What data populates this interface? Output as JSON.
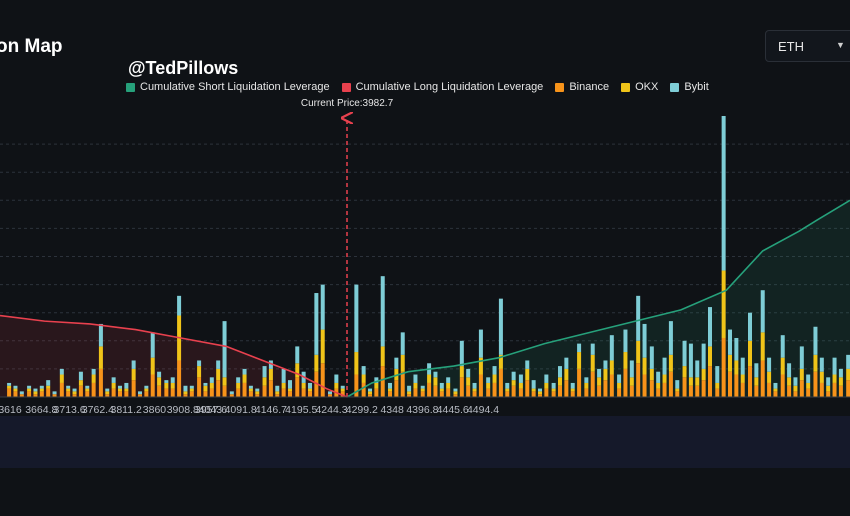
{
  "title": "on Map",
  "watermark": "@TedPillows",
  "symbol_select": {
    "value": "ETH"
  },
  "colors": {
    "short": "#26a17b",
    "long": "#e8414e",
    "binance": "#f7931a",
    "okx": "#f0c419",
    "bybit": "#7ecdd6"
  },
  "chart_data": {
    "type": "bar",
    "title": "",
    "current_price": {
      "label": "Current Price:3982.7",
      "value": 3982.7
    },
    "legend": [
      "Cumulative Short Liquidation Leverage",
      "Cumulative Long Liquidation Leverage",
      "Binance",
      "OKX",
      "Bybit"
    ],
    "x_tick_labels": [
      "3616",
      "3664.8",
      "3713.6",
      "3762.4",
      "3811.2",
      "3860",
      "3908.8",
      "3957.6",
      "4043",
      "4091.8",
      "4146.7",
      "4195.5",
      "4244.3",
      "4299.2",
      "4348",
      "4396.8",
      "4445.6",
      "4494.4"
    ],
    "xlim": [
      3601,
      4536
    ],
    "ylim": [
      0,
      100
    ],
    "grid": true,
    "bars_x": [
      3611,
      3618,
      3625,
      3633,
      3640,
      3647,
      3654,
      3661,
      3669,
      3676,
      3683,
      3690,
      3697,
      3704,
      3712,
      3719,
      3726,
      3733,
      3740,
      3748,
      3755,
      3762,
      3769,
      3776,
      3784,
      3791,
      3798,
      3805,
      3812,
      3820,
      3827,
      3834,
      3841,
      3848,
      3856,
      3863,
      3870,
      3877,
      3884,
      3892,
      3899,
      3906,
      3913,
      3920,
      3928,
      3935,
      3942,
      3949,
      3956,
      3964,
      3971,
      3978,
      3993,
      4001,
      4008,
      4015,
      4022,
      4030,
      4037,
      4044,
      4051,
      4058,
      4066,
      4073,
      4080,
      4087,
      4094,
      4102,
      4109,
      4116,
      4123,
      4130,
      4138,
      4145,
      4152,
      4159,
      4166,
      4174,
      4181,
      4188,
      4195,
      4202,
      4210,
      4217,
      4224,
      4231,
      4238,
      4246,
      4253,
      4260,
      4267,
      4274,
      4282,
      4289,
      4296,
      4303,
      4310,
      4318,
      4325,
      4332,
      4339,
      4346,
      4354,
      4361,
      4368,
      4375,
      4382,
      4390,
      4397,
      4404,
      4411,
      4418,
      4426,
      4433,
      4440,
      4447,
      4454,
      4462,
      4469,
      4476,
      4483,
      4490,
      4498,
      4505,
      4512,
      4519,
      4526,
      4534
    ],
    "binance": [
      3,
      2,
      1,
      2,
      1,
      2,
      3,
      1,
      5,
      2,
      1,
      4,
      2,
      5,
      10,
      1,
      3,
      2,
      2,
      6,
      1,
      2,
      8,
      4,
      3,
      3,
      13,
      1,
      2,
      7,
      2,
      3,
      6,
      4,
      1,
      3,
      5,
      2,
      1,
      4,
      6,
      1,
      3,
      2,
      7,
      3,
      2,
      9,
      12,
      1,
      3,
      2,
      8,
      5,
      1,
      3,
      11,
      2,
      6,
      9,
      1,
      3,
      2,
      5,
      4,
      2,
      3,
      1,
      7,
      4,
      2,
      8,
      3,
      5,
      10,
      2,
      4,
      3,
      6,
      2,
      1,
      3,
      2,
      4,
      6,
      2,
      10,
      3,
      9,
      4,
      6,
      8,
      3,
      10,
      4,
      12,
      8,
      6,
      3,
      5,
      9,
      2,
      7,
      4,
      4,
      6,
      11,
      3,
      21,
      9,
      8,
      5,
      11,
      4,
      13,
      5,
      2,
      8,
      4,
      2,
      6,
      3,
      9,
      5,
      2,
      5,
      4,
      6
    ],
    "okx": [
      1,
      1,
      0,
      1,
      1,
      1,
      1,
      0,
      3,
      1,
      1,
      2,
      1,
      3,
      8,
      1,
      2,
      1,
      1,
      4,
      0,
      1,
      6,
      3,
      2,
      2,
      16,
      1,
      1,
      4,
      2,
      2,
      4,
      3,
      0,
      2,
      3,
      1,
      1,
      3,
      4,
      1,
      2,
      1,
      5,
      2,
      1,
      6,
      12,
      0,
      2,
      1,
      8,
      3,
      1,
      2,
      7,
      1,
      4,
      6,
      1,
      2,
      1,
      3,
      3,
      1,
      2,
      1,
      4,
      3,
      1,
      6,
      2,
      3,
      5,
      1,
      2,
      2,
      4,
      1,
      1,
      2,
      1,
      3,
      4,
      1,
      6,
      2,
      6,
      3,
      4,
      5,
      2,
      6,
      3,
      8,
      6,
      4,
      2,
      3,
      6,
      1,
      4,
      3,
      3,
      4,
      7,
      2,
      24,
      6,
      5,
      3,
      9,
      3,
      10,
      4,
      1,
      6,
      3,
      2,
      4,
      2,
      6,
      4,
      2,
      3,
      3,
      4
    ],
    "bybit": [
      1,
      1,
      1,
      1,
      1,
      1,
      2,
      1,
      2,
      1,
      1,
      3,
      1,
      2,
      8,
      1,
      2,
      1,
      2,
      3,
      1,
      1,
      9,
      2,
      1,
      2,
      7,
      2,
      1,
      2,
      1,
      2,
      3,
      20,
      1,
      2,
      2,
      1,
      1,
      4,
      3,
      2,
      5,
      3,
      6,
      4,
      2,
      22,
      16,
      1,
      3,
      1,
      24,
      3,
      1,
      2,
      25,
      2,
      4,
      8,
      2,
      3,
      1,
      4,
      2,
      2,
      2,
      1,
      9,
      3,
      2,
      10,
      2,
      3,
      20,
      2,
      3,
      3,
      3,
      3,
      1,
      3,
      2,
      4,
      4,
      2,
      3,
      2,
      4,
      3,
      3,
      9,
      3,
      8,
      6,
      16,
      12,
      8,
      4,
      6,
      12,
      3,
      9,
      12,
      6,
      9,
      14,
      6,
      55,
      9,
      8,
      6,
      10,
      5,
      15,
      5,
      2,
      8,
      5,
      3,
      8,
      3,
      10,
      5,
      3,
      6,
      3,
      5
    ],
    "cumulative_long": {
      "x": [
        3601,
        3650,
        3700,
        3750,
        3800,
        3850,
        3890,
        3930,
        3960,
        3982.7
      ],
      "y": [
        29,
        27,
        26,
        24,
        21,
        18,
        13,
        8,
        3,
        0
      ]
    },
    "cumulative_short": {
      "x": [
        3982.7,
        4010,
        4050,
        4100,
        4150,
        4200,
        4250,
        4300,
        4350,
        4400,
        4440,
        4480,
        4500,
        4536
      ],
      "y": [
        0,
        5,
        9,
        11,
        14,
        19,
        23,
        27,
        31,
        38,
        52,
        59,
        63,
        70
      ]
    }
  }
}
